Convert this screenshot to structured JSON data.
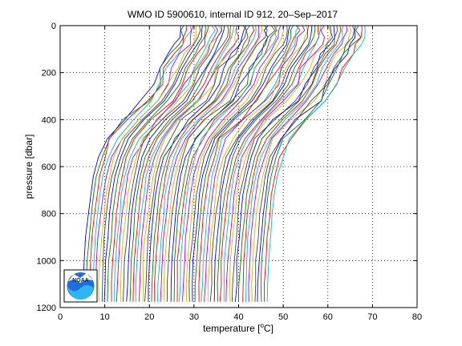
{
  "chart_data": {
    "type": "line",
    "title": "WMO ID 5900610, internal ID 912, 20–Sep–2017",
    "xlabel_text": "temperature [",
    "xlabel_unit": "C]",
    "xlabel_degree": "o",
    "ylabel": "pressure [dbar]",
    "xlim": [
      0,
      80
    ],
    "ylim": [
      0,
      1200
    ],
    "y_reversed": true,
    "grid": true,
    "xticks": [
      "0",
      "10",
      "20",
      "30",
      "40",
      "50",
      "60",
      "70",
      "80"
    ],
    "yticks": [
      "0",
      "200",
      "400",
      "600",
      "800",
      "1000",
      "1200"
    ],
    "series_count": 60,
    "offset_step": 0.7,
    "base_profile": {
      "pressure": [
        0,
        20,
        50,
        80,
        120,
        180,
        250,
        320,
        400,
        480,
        560,
        640,
        720,
        800,
        900,
        1000,
        1100,
        1175
      ],
      "temperature": [
        27.0,
        27.0,
        26.8,
        26.0,
        24.5,
        22.5,
        21.0,
        18.5,
        14.0,
        10.5,
        8.6,
        7.5,
        6.8,
        6.3,
        5.8,
        5.4,
        5.2,
        5.1
      ]
    },
    "colors": [
      "#0000ff",
      "#008000",
      "#ff0000",
      "#00bfbf",
      "#bf00bf",
      "#bfbf00",
      "#404040"
    ],
    "logo_text": "NOAA"
  }
}
